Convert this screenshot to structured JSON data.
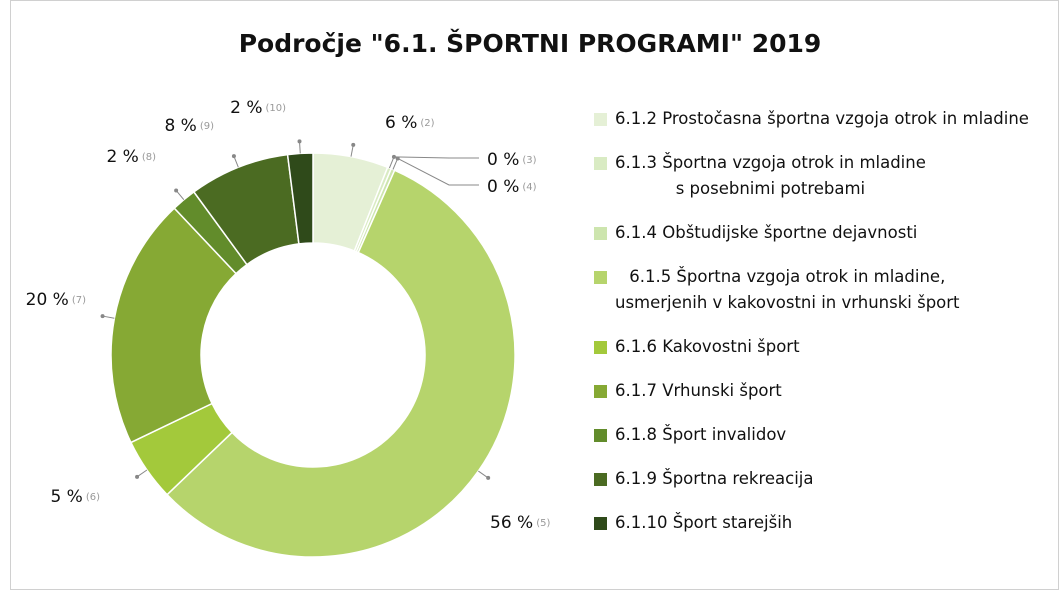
{
  "chart_data": {
    "type": "donut",
    "title": "Področje \"6.1. ŠPORTNI PROGRAMI\" 2019",
    "categories": [
      "6.1.2 Prostočasna športna vzgoja otrok in mladine",
      "6.1.3 Športna vzgoja otrok in mladine\ns posebnimi potrebami",
      "6.1.4 Obštudijske športne dejavnosti",
      "6.1.5 Športna vzgoja otrok in mladine,\nusmerjenih v kakovostni in vrhunski šport",
      "6.1.6 Kakovostni šport",
      "6.1.7 Vrhunski šport",
      "6.1.8 Šport invalidov",
      "6.1.9 Športna rekreacija",
      "6.1.10 Šport starejših"
    ],
    "values": [
      6,
      0.3,
      0.3,
      56,
      5,
      20,
      2,
      8,
      2
    ],
    "value_labels": [
      "6 %",
      "0 %",
      "0 %",
      "56 %",
      "5 %",
      "20 %",
      "2 %",
      "8 %",
      "2 %"
    ],
    "value_label_notes": [
      "(2)",
      "(3)",
      "(4)",
      "(5)",
      "(6)",
      "(7)",
      "(8)",
      "(9)",
      "(10)"
    ],
    "colors": [
      "#e5f0d6",
      "#d9ebc3",
      "#cde5ae",
      "#b6d46c",
      "#a3c93b",
      "#86a934",
      "#628c2b",
      "#4b6b22",
      "#2f4a1a"
    ],
    "legend": "right"
  }
}
